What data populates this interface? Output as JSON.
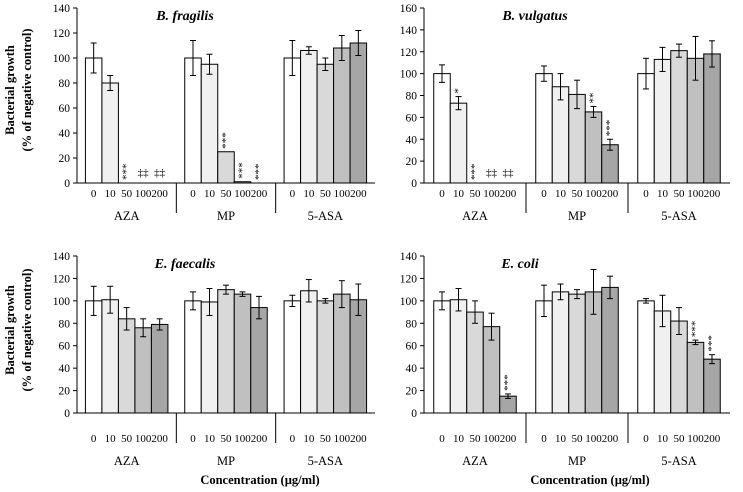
{
  "figure": {
    "ylabel": [
      "Bacterial growth",
      "(% of negative control)"
    ],
    "xlabel": "Concentration (µg/ml)"
  },
  "colors": {
    "shades": [
      "#ffffff",
      "#f0f0f0",
      "#d9d9d9",
      "#c0c0c0",
      "#a6a6a6"
    ],
    "stroke": "#000000"
  },
  "chart_data": [
    {
      "type": "bar",
      "title": "B. fragilis",
      "ylim": [
        0,
        140
      ],
      "yticks": [
        0,
        20,
        40,
        60,
        80,
        100,
        120,
        140
      ],
      "groups": [
        "AZA",
        "MP",
        "5-ASA"
      ],
      "categories": [
        "0",
        "10",
        "50",
        "100",
        "200"
      ],
      "series": [
        {
          "group": "AZA",
          "values": [
            100,
            80,
            0,
            0,
            0
          ],
          "errors": [
            12,
            6,
            0,
            0,
            0
          ],
          "annotations": [
            "",
            "",
            "***",
            "‡‡",
            "‡‡"
          ]
        },
        {
          "group": "MP",
          "values": [
            100,
            95,
            25,
            1,
            0
          ],
          "errors": [
            14,
            8,
            0,
            0,
            0
          ],
          "annotations": [
            "",
            "",
            "***",
            "***",
            "***"
          ]
        },
        {
          "group": "5-ASA",
          "values": [
            100,
            106,
            95,
            108,
            112
          ],
          "errors": [
            14,
            3,
            5,
            10,
            10
          ],
          "annotations": [
            "",
            "",
            "",
            "",
            ""
          ]
        }
      ]
    },
    {
      "type": "bar",
      "title": "B. vulgatus",
      "ylim": [
        0,
        160
      ],
      "yticks": [
        0,
        20,
        40,
        60,
        80,
        100,
        120,
        140,
        160
      ],
      "groups": [
        "AZA",
        "MP",
        "5-ASA"
      ],
      "categories": [
        "0",
        "10",
        "50",
        "100",
        "200"
      ],
      "series": [
        {
          "group": "AZA",
          "values": [
            100,
            73,
            0,
            0,
            0
          ],
          "errors": [
            8,
            6,
            0,
            0,
            0
          ],
          "annotations": [
            "",
            "*",
            "***",
            "‡‡",
            "‡‡"
          ]
        },
        {
          "group": "MP",
          "values": [
            100,
            88,
            81,
            65,
            35
          ],
          "errors": [
            7,
            12,
            13,
            5,
            5
          ],
          "annotations": [
            "",
            "",
            "",
            "**",
            "***"
          ]
        },
        {
          "group": "5-ASA",
          "values": [
            100,
            113,
            121,
            114,
            118
          ],
          "errors": [
            14,
            11,
            6,
            20,
            12
          ],
          "annotations": [
            "",
            "",
            "",
            "",
            ""
          ]
        }
      ]
    },
    {
      "type": "bar",
      "title": "E. faecalis",
      "ylim": [
        0,
        140
      ],
      "yticks": [
        0,
        20,
        40,
        60,
        80,
        100,
        120,
        140
      ],
      "groups": [
        "AZA",
        "MP",
        "5-ASA"
      ],
      "categories": [
        "0",
        "10",
        "50",
        "100",
        "200"
      ],
      "series": [
        {
          "group": "AZA",
          "values": [
            100,
            101,
            84,
            76,
            79
          ],
          "errors": [
            13,
            12,
            10,
            8,
            5
          ],
          "annotations": [
            "",
            "",
            "",
            "",
            ""
          ]
        },
        {
          "group": "MP",
          "values": [
            100,
            99,
            110,
            106,
            94
          ],
          "errors": [
            8,
            12,
            4,
            2,
            10
          ],
          "annotations": [
            "",
            "",
            "",
            "",
            ""
          ]
        },
        {
          "group": "5-ASA",
          "values": [
            100,
            109,
            100,
            106,
            101
          ],
          "errors": [
            5,
            10,
            2,
            12,
            14
          ],
          "annotations": [
            "",
            "",
            "",
            "",
            ""
          ]
        }
      ]
    },
    {
      "type": "bar",
      "title": "E. coli",
      "ylim": [
        0,
        140
      ],
      "yticks": [
        0,
        20,
        40,
        60,
        80,
        100,
        120,
        140
      ],
      "groups": [
        "AZA",
        "MP",
        "5-ASA"
      ],
      "categories": [
        "0",
        "10",
        "50",
        "100",
        "200"
      ],
      "series": [
        {
          "group": "AZA",
          "values": [
            100,
            101,
            90,
            77,
            15
          ],
          "errors": [
            8,
            10,
            10,
            12,
            2
          ],
          "annotations": [
            "",
            "",
            "",
            "",
            "***"
          ]
        },
        {
          "group": "MP",
          "values": [
            100,
            108,
            106,
            108,
            112
          ],
          "errors": [
            14,
            7,
            4,
            20,
            10
          ],
          "annotations": [
            "",
            "",
            "",
            "",
            ""
          ]
        },
        {
          "group": "5-ASA",
          "values": [
            100,
            91,
            82,
            63,
            48
          ],
          "errors": [
            2,
            14,
            12,
            2,
            4
          ],
          "annotations": [
            "",
            "",
            "",
            "***",
            "***"
          ]
        }
      ]
    }
  ]
}
